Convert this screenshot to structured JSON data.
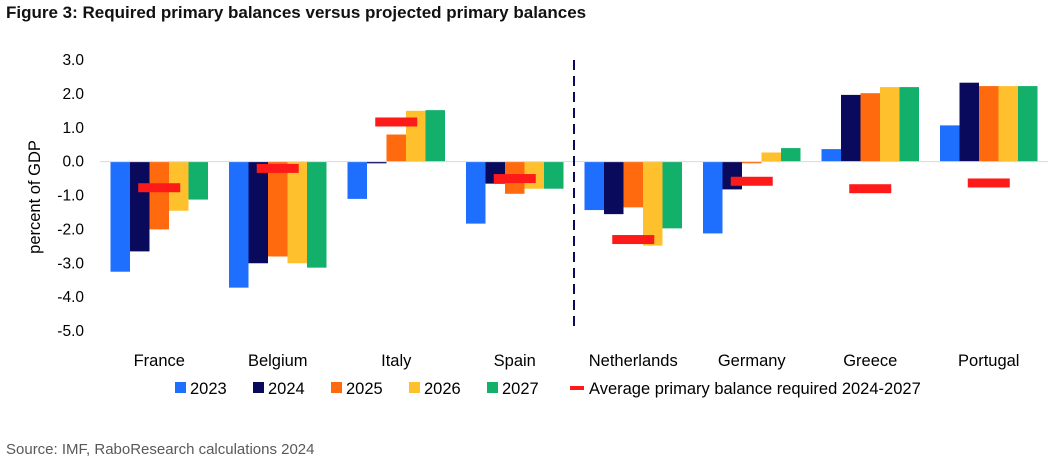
{
  "title": "Figure 3: Required primary balances versus projected primary balances",
  "source": "Source: IMF, RaboResearch calculations 2024",
  "chart_data": {
    "type": "bar",
    "ylabel": "percent of GDP",
    "xlabel": "",
    "ylim": [
      -5.0,
      3.0
    ],
    "yticks": [
      "-5.0",
      "-4.0",
      "-3.0",
      "-2.0",
      "-1.0",
      "0.0",
      "1.0",
      "2.0",
      "3.0"
    ],
    "grid": false,
    "legend_position": "bottom",
    "categories": [
      "France",
      "Belgium",
      "Italy",
      "Spain",
      "Netherlands",
      "Germany",
      "Greece",
      "Portugal"
    ],
    "series": [
      {
        "name": "2023",
        "color": "#1f6fff",
        "values": [
          -3.25,
          -3.72,
          -1.1,
          -1.83,
          -1.43,
          -2.12,
          0.37,
          1.07
        ]
      },
      {
        "name": "2024",
        "color": "#0a0a5c",
        "values": [
          -2.65,
          -3.0,
          -0.05,
          -0.65,
          -1.55,
          -0.82,
          1.97,
          2.33
        ]
      },
      {
        "name": "2025",
        "color": "#ff6a0e",
        "values": [
          -2.0,
          -2.8,
          0.8,
          -0.95,
          -1.35,
          -0.05,
          2.02,
          2.23
        ]
      },
      {
        "name": "2026",
        "color": "#ffc02e",
        "values": [
          -1.45,
          -3.0,
          1.5,
          -0.8,
          -2.48,
          0.27,
          2.2,
          2.23
        ]
      },
      {
        "name": "2027",
        "color": "#12b06a",
        "values": [
          -1.12,
          -3.13,
          1.52,
          -0.8,
          -1.97,
          0.4,
          2.2,
          2.23
        ]
      }
    ],
    "required_series": {
      "name": "Average primary balance required 2024-2027",
      "color": "#ff1a1a",
      "values": [
        -0.77,
        -0.2,
        1.17,
        -0.5,
        -2.3,
        -0.58,
        -0.8,
        -0.63
      ]
    },
    "divider_after_category": "Spain"
  }
}
